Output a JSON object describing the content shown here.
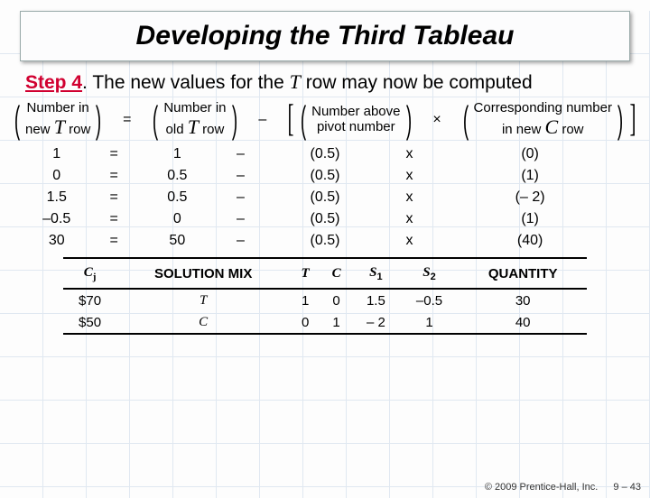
{
  "colors": {
    "grid": "#c9d8e8",
    "accent": "#d10030",
    "text": "#000000",
    "title_bg": "#fcfcfd",
    "title_border": "#9aa"
  },
  "title": "Developing the Third Tableau",
  "step": {
    "label": "Step 4",
    "suffix_1": ". The new values for the ",
    "var": "T",
    "suffix_2": " row may now be computed"
  },
  "formula": {
    "t1l1": "Number in",
    "t1l2_pre": "new ",
    "t1l2_var": "T",
    "t1l2_suf": " row",
    "eq": "=",
    "t2l1": "Number in",
    "t2l2_pre": "old ",
    "t2l2_var": "T",
    "t2l2_suf": " row",
    "minus": "–",
    "t3l1": "Number above",
    "t3l2": "pivot number",
    "times": "×",
    "t4l1": "Corresponding number",
    "t4l2_pre": "in new ",
    "t4l2_var": "C",
    "t4l2_suf": " row"
  },
  "calc": {
    "rows": [
      {
        "new": "1",
        "eq": "=",
        "old": "1",
        "m": "–",
        "above": "(0.5)",
        "x": "x",
        "corr": "(0)"
      },
      {
        "new": "0",
        "eq": "=",
        "old": "0.5",
        "m": "–",
        "above": "(0.5)",
        "x": "x",
        "corr": "(1)"
      },
      {
        "new": "1.5",
        "eq": "=",
        "old": "0.5",
        "m": "–",
        "above": "(0.5)",
        "x": "x",
        "corr": "(– 2)"
      },
      {
        "new": "–0.5",
        "eq": "=",
        "old": "0",
        "m": "–",
        "above": "(0.5)",
        "x": "x",
        "corr": "(1)"
      },
      {
        "new": "30",
        "eq": "=",
        "old": "50",
        "m": "–",
        "above": "(0.5)",
        "x": "x",
        "corr": "(40)"
      }
    ]
  },
  "solTable": {
    "headers": {
      "cj": "C",
      "cj_sub": "j",
      "mix": "SOLUTION MIX",
      "T": "T",
      "C": "C",
      "S1": "S",
      "S1_sub": "1",
      "S2": "S",
      "S2_sub": "2",
      "qty": "QUANTITY"
    },
    "rows": [
      {
        "cj": "$70",
        "mix": "T",
        "t": "1",
        "c": "0",
        "s1": "1.5",
        "s2": "–0.5",
        "qty": "30"
      },
      {
        "cj": "$50",
        "mix": "C",
        "t": "0",
        "c": "1",
        "s1": "– 2",
        "s2": "1",
        "qty": "40"
      }
    ]
  },
  "footer": {
    "copyright": "© 2009 Prentice-Hall, Inc.",
    "page": "9 – 43"
  }
}
